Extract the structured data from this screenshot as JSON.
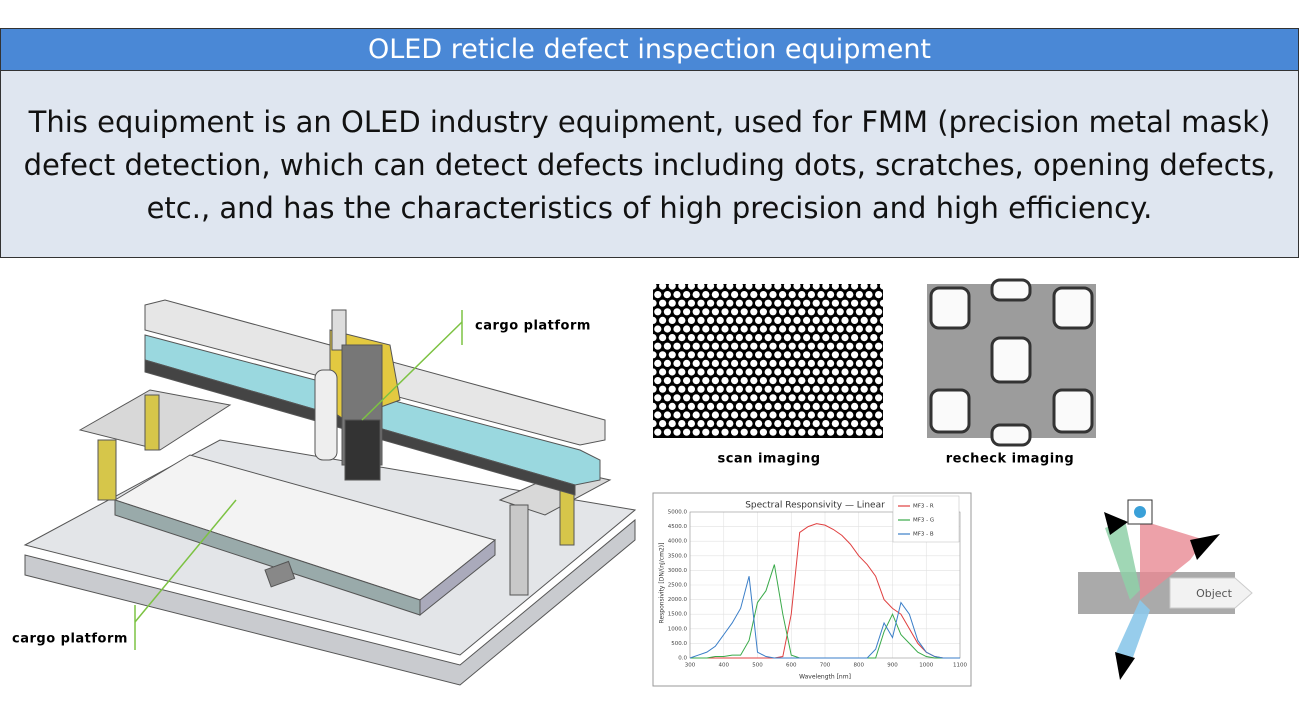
{
  "header": {
    "title": "OLED reticle defect inspection equipment"
  },
  "description": "This equipment is an OLED industry equipment, used for FMM (precision metal mask) defect detection, which can detect defects including dots, scratches, opening defects, etc., and has the characteristics of high precision and high efficiency.",
  "machine": {
    "labels": [
      "cargo platform",
      "cargo platform"
    ]
  },
  "images": {
    "scan": "scan imaging",
    "recheck": "recheck imaging"
  },
  "optics": {
    "label": "Object"
  },
  "chart_data": {
    "type": "line",
    "title": "Spectral Responsivity — Linear",
    "x_label": "Wavelength [nm]",
    "y_label": "Responsivity [DN/(nJ/cm2)]",
    "x": [
      300,
      325,
      350,
      375,
      400,
      425,
      450,
      475,
      500,
      525,
      550,
      575,
      600,
      625,
      650,
      675,
      700,
      725,
      750,
      775,
      800,
      825,
      850,
      875,
      900,
      925,
      950,
      975,
      1000,
      1025,
      1050,
      1075,
      1100
    ],
    "series": [
      {
        "name": "MF3 - R",
        "color": "#e04040",
        "values": [
          0,
          0,
          0,
          0,
          0,
          0,
          0,
          0,
          0,
          0,
          0,
          50,
          1500,
          4300,
          4500,
          4600,
          4550,
          4400,
          4200,
          3900,
          3500,
          3200,
          2800,
          2000,
          1700,
          1500,
          1000,
          500,
          200,
          50,
          0,
          0,
          0
        ]
      },
      {
        "name": "MF3 - G",
        "color": "#3aaa4a",
        "values": [
          0,
          0,
          0,
          50,
          50,
          100,
          100,
          600,
          1900,
          2300,
          3200,
          1500,
          100,
          0,
          0,
          0,
          0,
          0,
          0,
          0,
          0,
          0,
          0,
          900,
          1500,
          800,
          500,
          200,
          50,
          0,
          0,
          0,
          0
        ]
      },
      {
        "name": "MF3 - B",
        "color": "#3a7ec8",
        "values": [
          0,
          100,
          200,
          400,
          800,
          1200,
          1700,
          2800,
          200,
          50,
          0,
          0,
          0,
          0,
          0,
          0,
          0,
          0,
          0,
          0,
          0,
          0,
          300,
          1200,
          700,
          1900,
          1500,
          600,
          200,
          50,
          0,
          0,
          0
        ]
      }
    ],
    "xlim": [
      300,
      1100
    ],
    "ylim": [
      0,
      5000
    ],
    "xticks": [
      300,
      400,
      500,
      600,
      700,
      800,
      900,
      1000,
      1100
    ],
    "yticks": [
      {
        "value": 0,
        "label": "0.0"
      },
      {
        "value": 500,
        "label": "500.0"
      },
      {
        "value": 1000,
        "label": "1000.0"
      },
      {
        "value": 1500,
        "label": "1500.0"
      },
      {
        "value": 2000,
        "label": "2000.0"
      },
      {
        "value": 2500,
        "label": "2500.0"
      },
      {
        "value": 3000,
        "label": "3000.0"
      },
      {
        "value": 3500,
        "label": "3500.0"
      },
      {
        "value": 4000,
        "label": "4000.0"
      },
      {
        "value": 4500,
        "label": "4500.0"
      },
      {
        "value": 5000,
        "label": "5000.0"
      }
    ],
    "grid": true
  }
}
